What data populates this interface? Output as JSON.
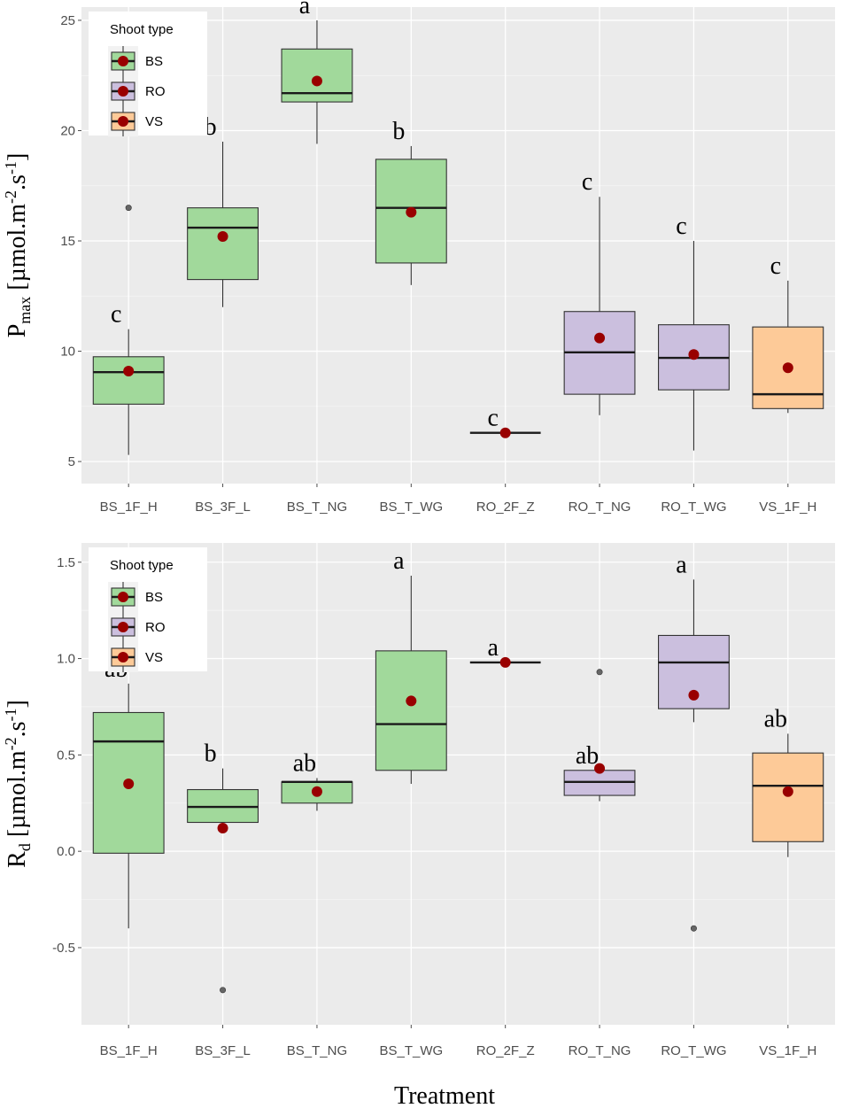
{
  "chart_data": [
    {
      "type": "box",
      "xlabel": "",
      "ylabel": {
        "main": "P",
        "sub": "max",
        "unit_pre": " [µmol.m",
        "sup1": "-2",
        "unit_mid": ".s",
        "sup2": "-1",
        "unit_post": "]"
      },
      "ylim": [
        4,
        25.6
      ],
      "yticks": [
        5,
        10,
        15,
        20,
        25
      ],
      "ytick_labels": [
        "5",
        "10",
        "15",
        "20",
        "25"
      ],
      "categories": [
        "BS_1F_H",
        "BS_3F_L",
        "BS_T_NG",
        "BS_T_WG",
        "RO_2F_Z",
        "RO_T_NG",
        "RO_T_WG",
        "VS_1F_H"
      ],
      "groups": [
        "BS",
        "BS",
        "BS",
        "BS",
        "RO",
        "RO",
        "RO",
        "VS"
      ],
      "boxes": [
        {
          "lower_whisker": 5.3,
          "q1": 7.6,
          "median": 9.05,
          "q3": 9.75,
          "upper_whisker": 11.0,
          "mean": 9.1,
          "outliers": [
            16.5
          ],
          "letter": "c"
        },
        {
          "lower_whisker": 12.0,
          "q1": 13.25,
          "median": 15.6,
          "q3": 16.5,
          "upper_whisker": 19.5,
          "mean": 15.2,
          "outliers": [],
          "letter": "b"
        },
        {
          "lower_whisker": 19.4,
          "q1": 21.3,
          "median": 21.7,
          "q3": 23.7,
          "upper_whisker": 25.0,
          "mean": 22.25,
          "outliers": [],
          "letter": "a"
        },
        {
          "lower_whisker": 13.0,
          "q1": 14.0,
          "median": 16.5,
          "q3": 18.7,
          "upper_whisker": 19.3,
          "mean": 16.3,
          "outliers": [],
          "letter": "b"
        },
        {
          "lower_whisker": 6.3,
          "q1": 6.3,
          "median": 6.3,
          "q3": 6.3,
          "upper_whisker": 6.3,
          "mean": 6.3,
          "outliers": [],
          "letter": "c"
        },
        {
          "lower_whisker": 7.1,
          "q1": 8.05,
          "median": 9.95,
          "q3": 11.8,
          "upper_whisker": 17.0,
          "mean": 10.6,
          "outliers": [],
          "letter": "c"
        },
        {
          "lower_whisker": 5.5,
          "q1": 8.25,
          "median": 9.7,
          "q3": 11.2,
          "upper_whisker": 15.0,
          "mean": 9.85,
          "outliers": [],
          "letter": "c"
        },
        {
          "lower_whisker": 7.2,
          "q1": 7.4,
          "median": 8.05,
          "q3": 11.1,
          "upper_whisker": 13.2,
          "mean": 9.25,
          "outliers": [],
          "letter": "c"
        }
      ],
      "legend": {
        "title": "Shoot type",
        "entries": [
          "BS",
          "RO",
          "VS"
        ],
        "placement": "top-left"
      }
    },
    {
      "type": "box",
      "xlabel": "Treatment",
      "ylabel": {
        "main": "R",
        "sub": "d",
        "unit_pre": " [µmol.m",
        "sup1": "-2",
        "unit_mid": ".s",
        "sup2": "-1",
        "unit_post": "]"
      },
      "ylim": [
        -0.9,
        1.6
      ],
      "yticks": [
        -0.5,
        0.0,
        0.5,
        1.0,
        1.5
      ],
      "ytick_labels": [
        "-0.5",
        "0.0",
        "0.5",
        "1.0",
        "1.5"
      ],
      "categories": [
        "BS_1F_H",
        "BS_3F_L",
        "BS_T_NG",
        "BS_T_WG",
        "RO_2F_Z",
        "RO_T_NG",
        "RO_T_WG",
        "VS_1F_H"
      ],
      "groups": [
        "BS",
        "BS",
        "BS",
        "BS",
        "RO",
        "RO",
        "RO",
        "VS"
      ],
      "boxes": [
        {
          "lower_whisker": -0.4,
          "q1": -0.01,
          "median": 0.57,
          "q3": 0.72,
          "upper_whisker": 0.87,
          "mean": 0.35,
          "outliers": [],
          "letter": "ab"
        },
        {
          "lower_whisker": 0.15,
          "q1": 0.15,
          "median": 0.23,
          "q3": 0.32,
          "upper_whisker": 0.43,
          "mean": 0.12,
          "outliers": [
            -0.72
          ],
          "letter": "b"
        },
        {
          "lower_whisker": 0.21,
          "q1": 0.25,
          "median": 0.36,
          "q3": 0.36,
          "upper_whisker": 0.38,
          "mean": 0.31,
          "outliers": [],
          "letter": "ab"
        },
        {
          "lower_whisker": 0.35,
          "q1": 0.42,
          "median": 0.66,
          "q3": 1.04,
          "upper_whisker": 1.43,
          "mean": 0.78,
          "outliers": [],
          "letter": "a"
        },
        {
          "lower_whisker": 0.98,
          "q1": 0.98,
          "median": 0.98,
          "q3": 0.98,
          "upper_whisker": 0.98,
          "mean": 0.98,
          "outliers": [],
          "letter": "a"
        },
        {
          "lower_whisker": 0.26,
          "q1": 0.29,
          "median": 0.36,
          "q3": 0.42,
          "upper_whisker": 0.42,
          "mean": 0.43,
          "outliers": [
            0.93
          ],
          "letter": "ab"
        },
        {
          "lower_whisker": 0.67,
          "q1": 0.74,
          "median": 0.98,
          "q3": 1.12,
          "upper_whisker": 1.41,
          "mean": 0.81,
          "outliers": [
            -0.4
          ],
          "letter": "a"
        },
        {
          "lower_whisker": -0.03,
          "q1": 0.05,
          "median": 0.34,
          "q3": 0.51,
          "upper_whisker": 0.61,
          "mean": 0.31,
          "outliers": [],
          "letter": "ab"
        }
      ],
      "legend": {
        "title": "Shoot type",
        "entries": [
          "BS",
          "RO",
          "VS"
        ],
        "placement": "top-left"
      }
    }
  ],
  "colors": {
    "BS": "#a1d99b",
    "RO": "#cbbfde",
    "VS": "#fdca98",
    "mean_point": "#990000"
  }
}
